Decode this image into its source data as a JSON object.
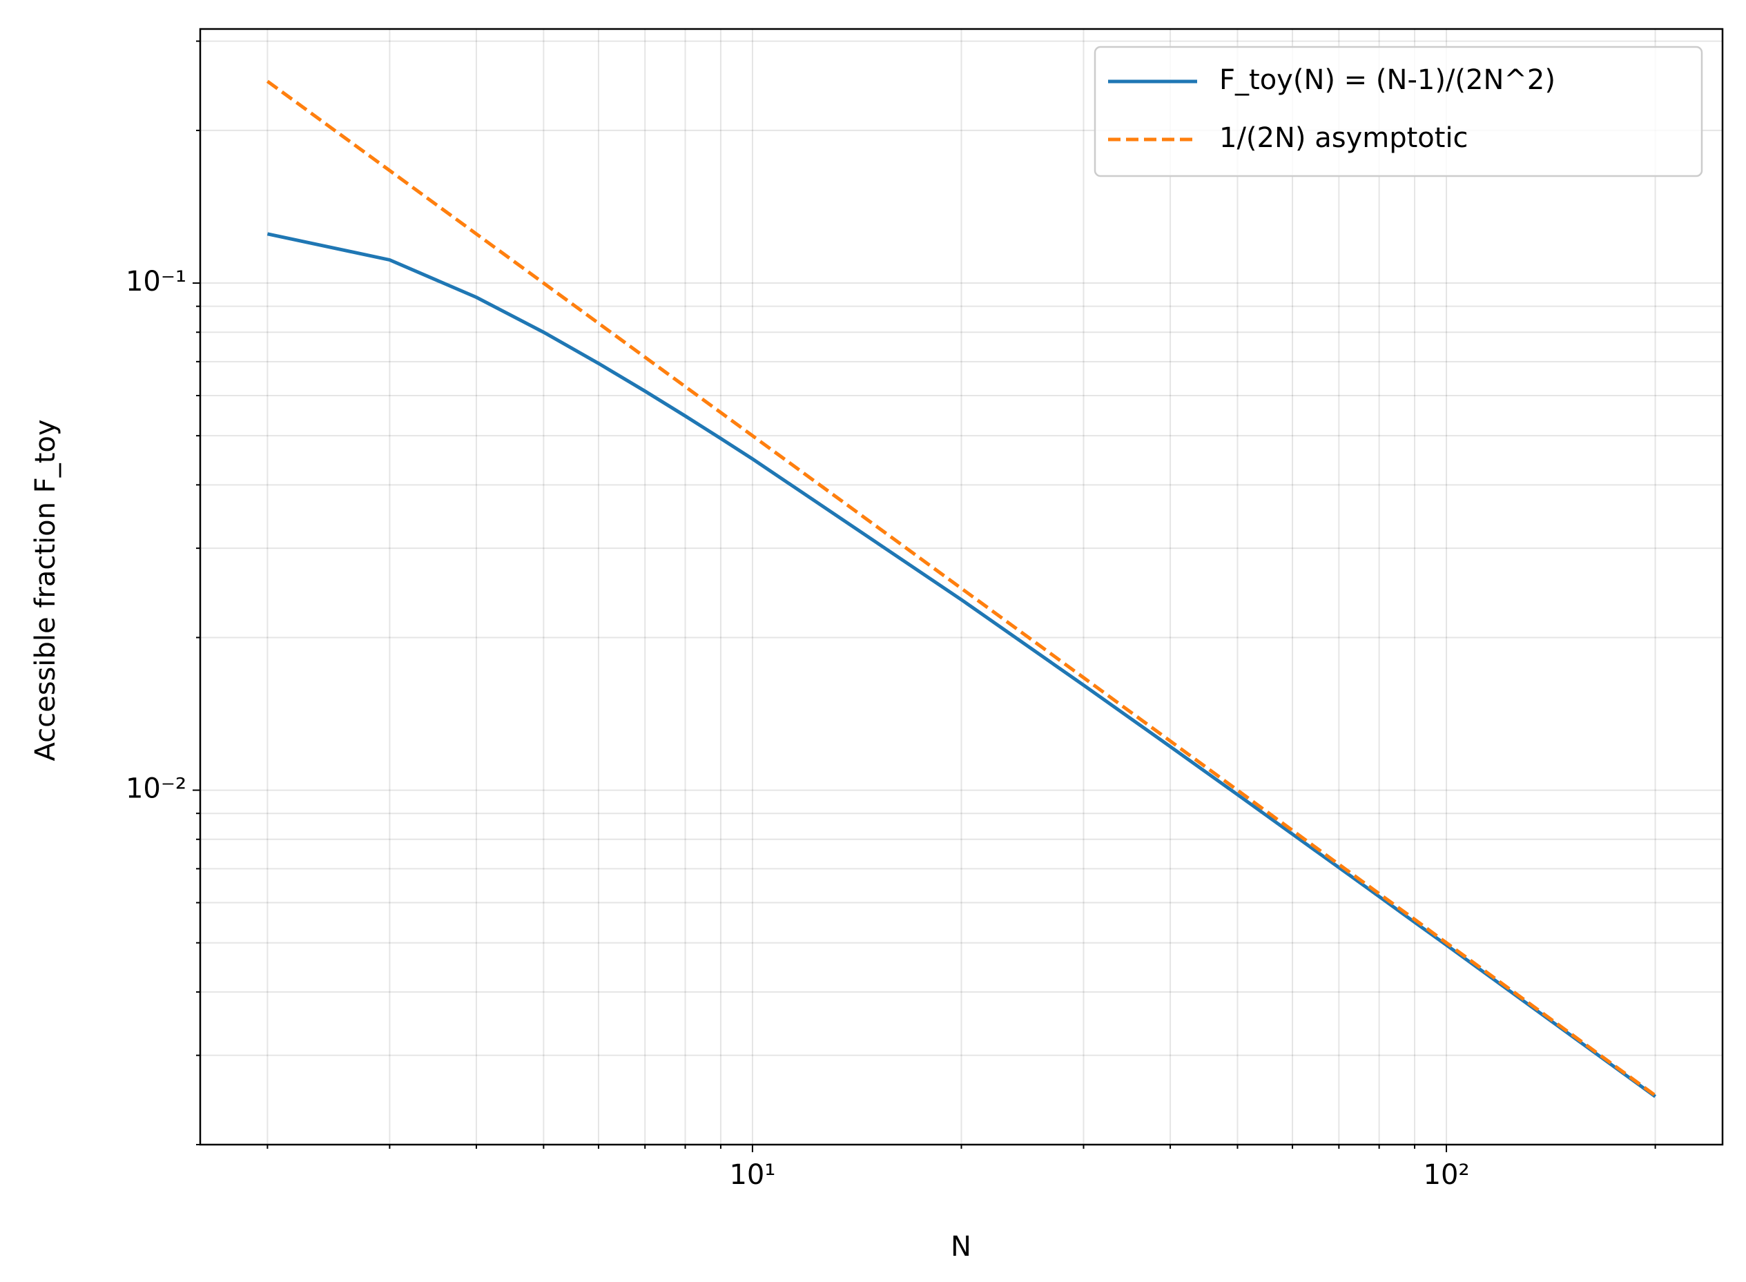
{
  "chart_data": {
    "type": "line",
    "x_label": "N",
    "y_label": "Accessible fraction F_toy",
    "x": [
      2,
      3,
      4,
      5,
      6,
      7,
      8,
      9,
      10,
      20,
      30,
      40,
      50,
      60,
      70,
      80,
      90,
      100,
      200
    ],
    "series": [
      {
        "name": "F_toy(N) = (N-1)/(2N^2)",
        "color": "#1f77b4",
        "dash": "solid",
        "values": [
          0.125,
          0.1111,
          0.09375,
          0.08,
          0.06944,
          0.06122,
          0.05469,
          0.04938,
          0.045,
          0.02375,
          0.01611,
          0.01219,
          0.0098,
          0.00819,
          0.00704,
          0.00617,
          0.00549,
          0.00495,
          0.002488
        ]
      },
      {
        "name": "1/(2N) asymptotic",
        "color": "#ff7f0e",
        "dash": "dashed",
        "values": [
          0.25,
          0.1667,
          0.125,
          0.1,
          0.08333,
          0.07143,
          0.0625,
          0.05556,
          0.05,
          0.025,
          0.01667,
          0.0125,
          0.01,
          0.00833,
          0.00714,
          0.00625,
          0.00556,
          0.005,
          0.0025
        ]
      }
    ],
    "xlog": true,
    "ylog": true,
    "xlim": [
      1.6,
      250
    ],
    "ylim": [
      0.002,
      0.317
    ],
    "xticks": [
      {
        "value": 10,
        "label": "10¹"
      },
      {
        "value": 100,
        "label": "10²"
      }
    ],
    "yticks": [
      {
        "value": 0.01,
        "label": "10⁻²"
      },
      {
        "value": 0.1,
        "label": "10⁻¹"
      }
    ],
    "xminorticks": [
      2,
      3,
      4,
      5,
      6,
      7,
      8,
      9,
      20,
      30,
      40,
      50,
      60,
      70,
      80,
      90,
      200
    ],
    "yminorticks": [
      0.002,
      0.003,
      0.004,
      0.005,
      0.006,
      0.007,
      0.008,
      0.009,
      0.02,
      0.03,
      0.04,
      0.05,
      0.06,
      0.07,
      0.08,
      0.09,
      0.2,
      0.3
    ],
    "grid": true,
    "legend_loc": "upper right"
  }
}
